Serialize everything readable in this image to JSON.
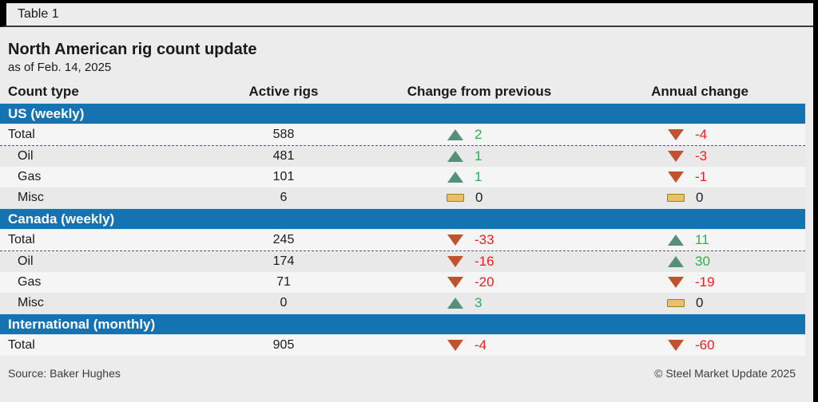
{
  "table_label": "Table 1",
  "header": {
    "title": "North American rig count update",
    "subtitle": "as of Feb. 14, 2025"
  },
  "columns": [
    "Count type",
    "Active rigs",
    "Change from previous",
    "Annual change"
  ],
  "sections": [
    {
      "name": "US (weekly)",
      "rows": [
        {
          "label": "Total",
          "active": "588",
          "prev": {
            "dir": "up",
            "tone": "green",
            "value": "2"
          },
          "annual": {
            "dir": "down",
            "tone": "red",
            "value": "-4"
          }
        },
        {
          "label": "Oil",
          "active": "481",
          "prev": {
            "dir": "up",
            "tone": "green",
            "value": "1"
          },
          "annual": {
            "dir": "down",
            "tone": "red",
            "value": "-3"
          }
        },
        {
          "label": "Gas",
          "active": "101",
          "prev": {
            "dir": "up",
            "tone": "green",
            "value": "1"
          },
          "annual": {
            "dir": "down",
            "tone": "red",
            "value": "-1"
          }
        },
        {
          "label": "Misc",
          "active": "6",
          "prev": {
            "dir": "flat",
            "tone": "neutral",
            "value": "0"
          },
          "annual": {
            "dir": "flat",
            "tone": "neutral",
            "value": "0"
          }
        }
      ]
    },
    {
      "name": "Canada (weekly)",
      "rows": [
        {
          "label": "Total",
          "active": "245",
          "prev": {
            "dir": "down",
            "tone": "red",
            "value": "-33"
          },
          "annual": {
            "dir": "up",
            "tone": "green",
            "value": "11"
          }
        },
        {
          "label": "Oil",
          "active": "174",
          "prev": {
            "dir": "down",
            "tone": "red",
            "value": "-16"
          },
          "annual": {
            "dir": "up",
            "tone": "green",
            "value": "30"
          }
        },
        {
          "label": "Gas",
          "active": "71",
          "prev": {
            "dir": "down",
            "tone": "red",
            "value": "-20"
          },
          "annual": {
            "dir": "down",
            "tone": "red",
            "value": "-19"
          }
        },
        {
          "label": "Misc",
          "active": "0",
          "prev": {
            "dir": "up",
            "tone": "green",
            "value": "3"
          },
          "annual": {
            "dir": "flat",
            "tone": "neutral",
            "value": "0"
          }
        }
      ]
    },
    {
      "name": "International (monthly)",
      "rows": [
        {
          "label": "Total",
          "active": "905",
          "prev": {
            "dir": "down",
            "tone": "red",
            "value": "-4"
          },
          "annual": {
            "dir": "down",
            "tone": "red",
            "value": "-60"
          }
        }
      ]
    }
  ],
  "footer": {
    "source": "Source: Baker Hughes",
    "copyright": "© Steel Market Update 2025"
  },
  "colors": {
    "section_blue": "#1573b2",
    "up_triangle": "#55917a",
    "down_triangle": "#c05230",
    "flat_marker": "#e9c168",
    "positive_text": "#27b24b",
    "negative_text": "#f11d1d"
  },
  "chart_data": {
    "type": "table",
    "title": "North American rig count update",
    "subtitle": "as of Feb. 14, 2025",
    "columns": [
      "Count type",
      "Active rigs",
      "Change from previous",
      "Annual change"
    ],
    "rows": [
      {
        "section": "US (weekly)",
        "count_type": "Total",
        "active_rigs": 588,
        "change_from_previous": 2,
        "annual_change": -4
      },
      {
        "section": "US (weekly)",
        "count_type": "Oil",
        "active_rigs": 481,
        "change_from_previous": 1,
        "annual_change": -3
      },
      {
        "section": "US (weekly)",
        "count_type": "Gas",
        "active_rigs": 101,
        "change_from_previous": 1,
        "annual_change": -1
      },
      {
        "section": "US (weekly)",
        "count_type": "Misc",
        "active_rigs": 6,
        "change_from_previous": 0,
        "annual_change": 0
      },
      {
        "section": "Canada (weekly)",
        "count_type": "Total",
        "active_rigs": 245,
        "change_from_previous": -33,
        "annual_change": 11
      },
      {
        "section": "Canada (weekly)",
        "count_type": "Oil",
        "active_rigs": 174,
        "change_from_previous": -16,
        "annual_change": 30
      },
      {
        "section": "Canada (weekly)",
        "count_type": "Gas",
        "active_rigs": 71,
        "change_from_previous": -20,
        "annual_change": -19
      },
      {
        "section": "Canada (weekly)",
        "count_type": "Misc",
        "active_rigs": 0,
        "change_from_previous": 3,
        "annual_change": 0
      },
      {
        "section": "International (monthly)",
        "count_type": "Total",
        "active_rigs": 905,
        "change_from_previous": -4,
        "annual_change": -60
      }
    ],
    "source": "Baker Hughes"
  }
}
